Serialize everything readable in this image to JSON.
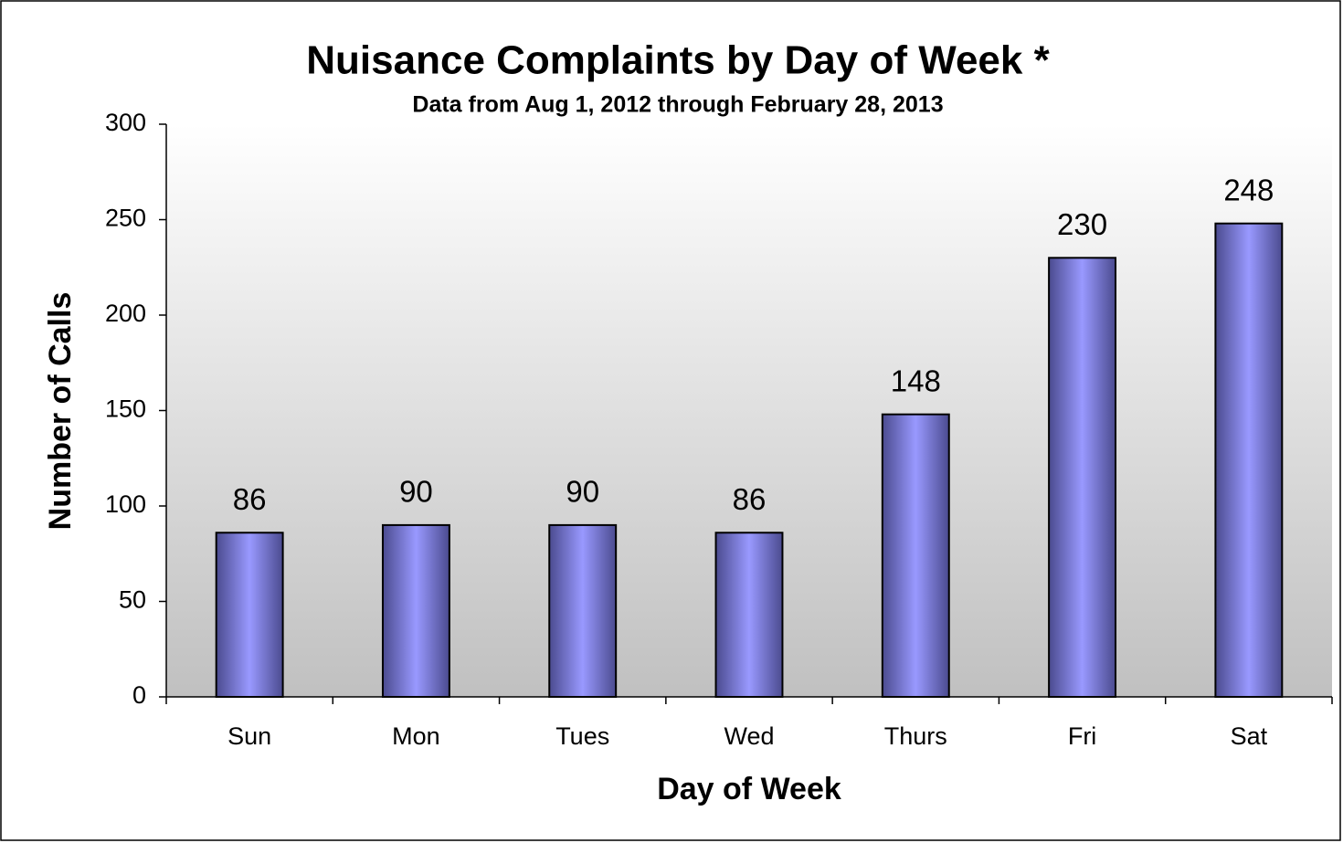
{
  "chart_data": {
    "type": "bar",
    "title": "Nuisance Complaints by Day of Week *",
    "subtitle": "Data from Aug 1, 2012 through February 28, 2013",
    "x_label": "Day of Week",
    "y_label": "Number of Calls",
    "categories": [
      "Sun",
      "Mon",
      "Tues",
      "Wed",
      "Thurs",
      "Fri",
      "Sat"
    ],
    "values": [
      86,
      90,
      90,
      86,
      148,
      230,
      248
    ],
    "color": "#9999ff",
    "ylim": [
      0,
      300
    ],
    "yticks": [
      0,
      50,
      100,
      150,
      200,
      250,
      300
    ]
  }
}
